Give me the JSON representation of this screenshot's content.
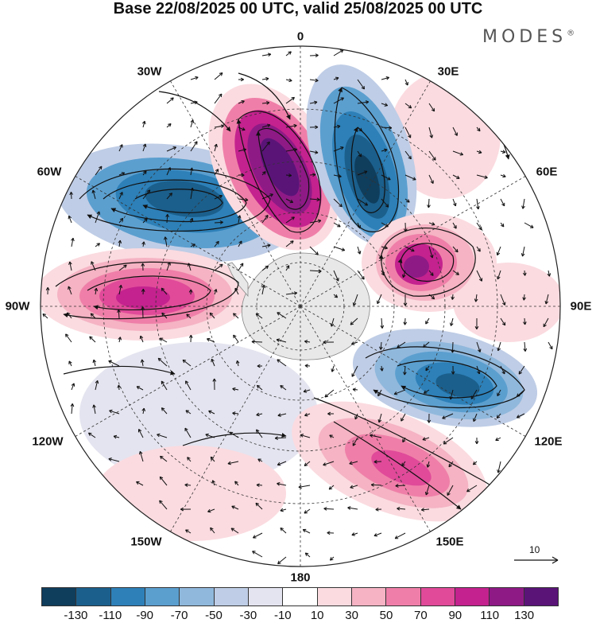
{
  "title": "Base 22/08/2025 00 UTC, valid 25/08/2025 00 UTC",
  "brand": "MODES",
  "brand_mark": "®",
  "longitude_labels": {
    "lon_0": "0",
    "lon_30e": "30E",
    "lon_60e": "60E",
    "lon_90e": "90E",
    "lon_120e": "120E",
    "lon_150e": "150E",
    "lon_180": "180",
    "lon_150w": "150W",
    "lon_120w": "120W",
    "lon_90w": "90W",
    "lon_60w": "60W",
    "lon_30w": "30W"
  },
  "reference_vector": {
    "label": "10"
  },
  "colorbar": {
    "colors": [
      "#0f3d5c",
      "#1b5f8c",
      "#2d80b8",
      "#5b9fcf",
      "#90b8dc",
      "#bfcde6",
      "#e4e4f0",
      "#ffffff",
      "#fbdbe0",
      "#f5b3c3",
      "#ef7fa8",
      "#e04a99",
      "#c4228e",
      "#8e1a86",
      "#5a1478"
    ],
    "ticks": [
      "-130",
      "-110",
      "-90",
      "-70",
      "-50",
      "-30",
      "-10",
      "10",
      "30",
      "50",
      "70",
      "90",
      "110",
      "130"
    ]
  },
  "colors": {
    "land": "#e8e8e8",
    "grid": "#333333",
    "contour": "#111111",
    "neg_strong": "#1b5f8c",
    "pos_strong": "#8e1a86"
  }
}
